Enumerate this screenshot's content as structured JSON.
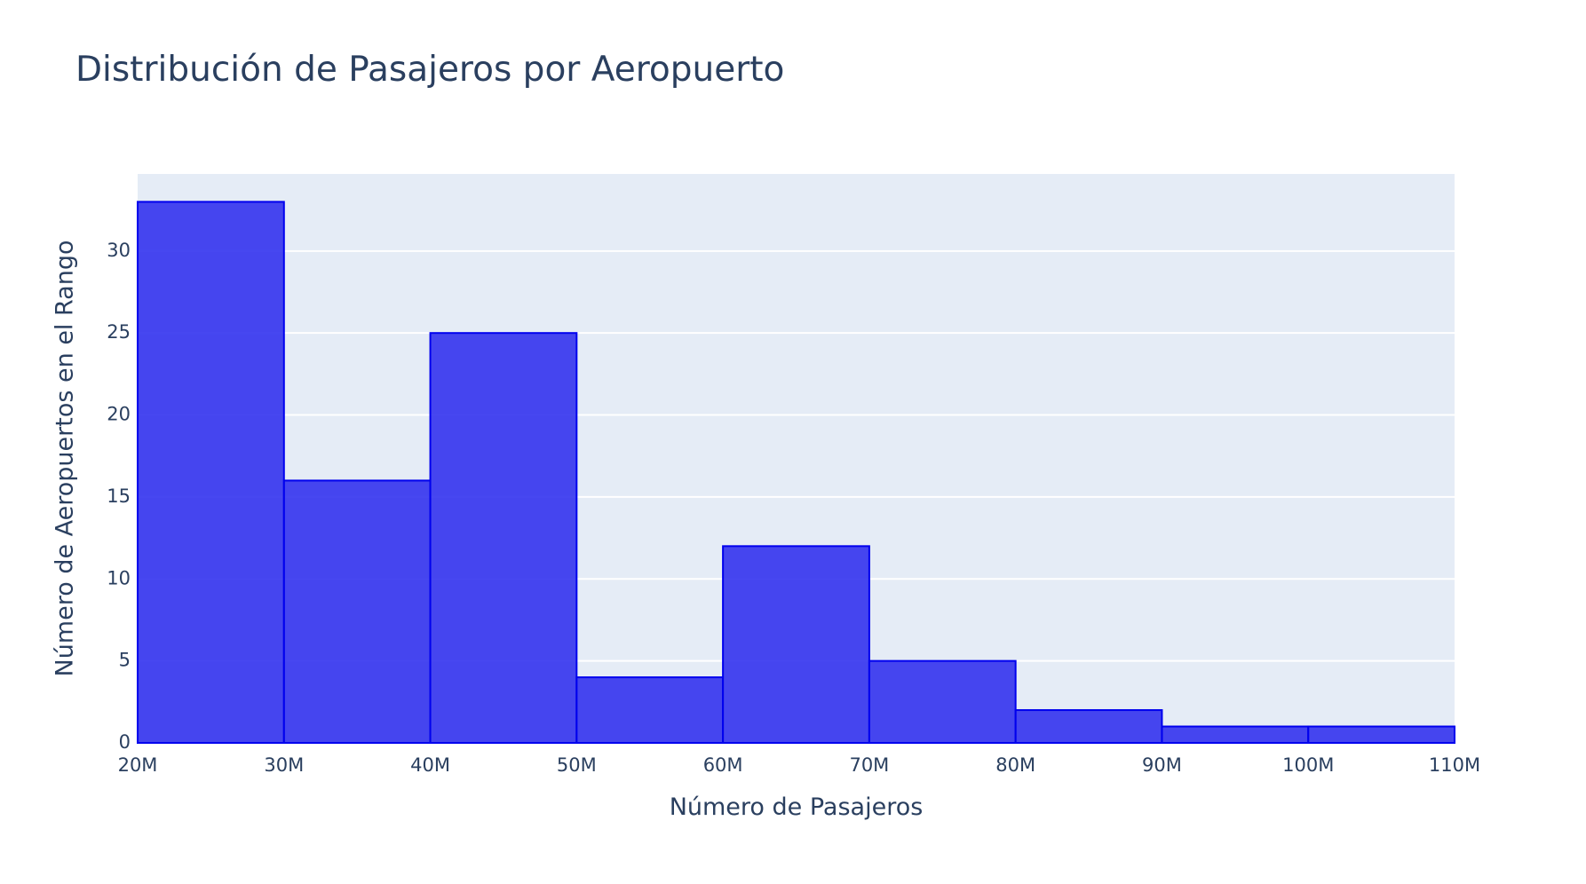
{
  "chart_data": {
    "type": "bar",
    "title": "Distribución de Pasajeros por Aeropuerto",
    "xlabel": "Número de Pasajeros",
    "ylabel": "Número de Aeropuertos en el Rango",
    "bins": [
      {
        "x0": 20,
        "x1": 30,
        "count": 33
      },
      {
        "x0": 30,
        "x1": 40,
        "count": 16
      },
      {
        "x0": 40,
        "x1": 50,
        "count": 25
      },
      {
        "x0": 50,
        "x1": 60,
        "count": 4
      },
      {
        "x0": 60,
        "x1": 70,
        "count": 12
      },
      {
        "x0": 70,
        "x1": 80,
        "count": 5
      },
      {
        "x0": 80,
        "x1": 90,
        "count": 2
      },
      {
        "x0": 90,
        "x1": 100,
        "count": 1
      },
      {
        "x0": 100,
        "x1": 110,
        "count": 1
      }
    ],
    "xlim": [
      20,
      110
    ],
    "ylim": [
      0,
      34.7
    ],
    "x_ticks": [
      {
        "value": 20,
        "label": "20M"
      },
      {
        "value": 30,
        "label": "30M"
      },
      {
        "value": 40,
        "label": "40M"
      },
      {
        "value": 50,
        "label": "50M"
      },
      {
        "value": 60,
        "label": "60M"
      },
      {
        "value": 70,
        "label": "70M"
      },
      {
        "value": 80,
        "label": "80M"
      },
      {
        "value": 90,
        "label": "90M"
      },
      {
        "value": 100,
        "label": "100M"
      },
      {
        "value": 110,
        "label": "110M"
      }
    ],
    "y_ticks": [
      {
        "value": 0,
        "label": "0"
      },
      {
        "value": 5,
        "label": "5"
      },
      {
        "value": 10,
        "label": "10"
      },
      {
        "value": 15,
        "label": "15"
      },
      {
        "value": 20,
        "label": "20"
      },
      {
        "value": 25,
        "label": "25"
      },
      {
        "value": 30,
        "label": "30"
      }
    ],
    "grid": true,
    "colors": {
      "bar_fill": "#3333ee",
      "bar_stroke": "#0000ee",
      "plot_bg": "#e5ecf6",
      "grid": "#ffffff",
      "text": "#2a3f5f"
    }
  }
}
